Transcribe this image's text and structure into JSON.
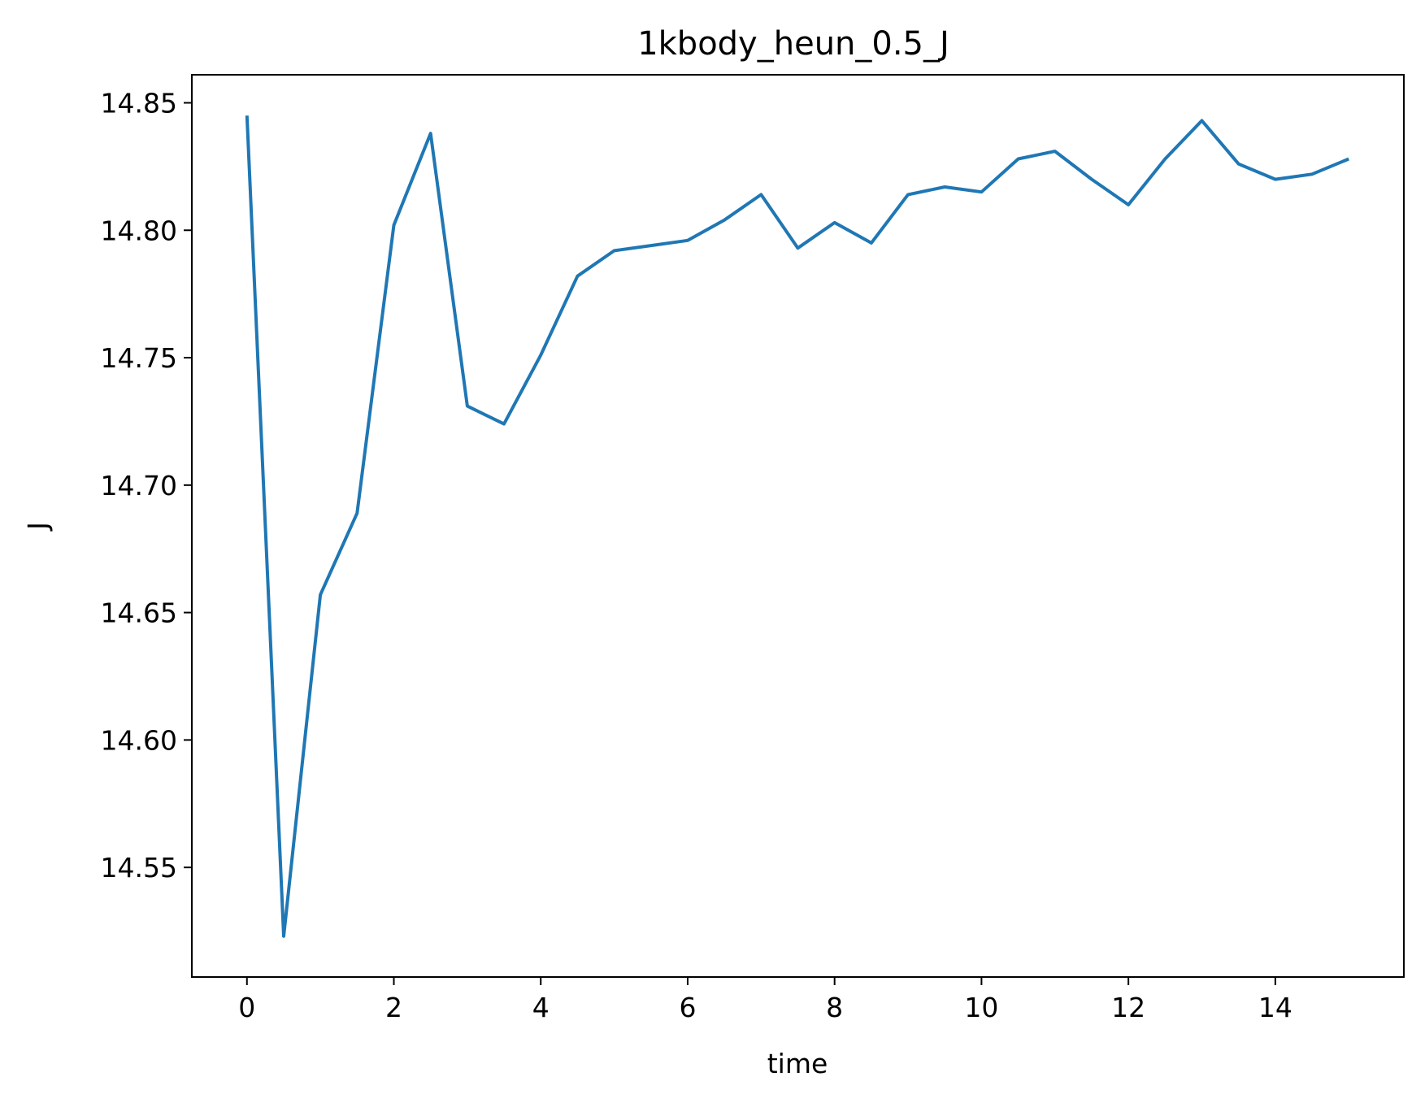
{
  "chart_data": {
    "type": "line",
    "title": "1kbody_heun_0.5_J",
    "xlabel": "time",
    "ylabel": "J",
    "xlim": [
      -0.75,
      15.75
    ],
    "ylim": [
      14.507,
      14.861
    ],
    "xticks": [
      0,
      2,
      4,
      6,
      8,
      10,
      12,
      14
    ],
    "xtick_labels": [
      "0",
      "2",
      "4",
      "6",
      "8",
      "10",
      "12",
      "14"
    ],
    "yticks": [
      14.55,
      14.6,
      14.65,
      14.7,
      14.75,
      14.8,
      14.85
    ],
    "ytick_labels": [
      "14.55",
      "14.60",
      "14.65",
      "14.70",
      "14.75",
      "14.80",
      "14.85"
    ],
    "grid": false,
    "series": [
      {
        "color": "#1f77b4",
        "x": [
          0,
          0.5,
          1,
          1.5,
          2,
          2.5,
          3,
          3.5,
          4,
          4.5,
          5,
          5.5,
          6,
          6.5,
          7,
          7.5,
          8,
          8.5,
          9,
          9.5,
          10,
          10.5,
          11,
          11.5,
          12,
          12.5,
          13,
          13.5,
          14,
          14.5,
          15
        ],
        "y": [
          14.845,
          14.523,
          14.657,
          14.689,
          14.802,
          14.838,
          14.731,
          14.724,
          14.751,
          14.782,
          14.792,
          14.794,
          14.796,
          14.804,
          14.814,
          14.793,
          14.803,
          14.795,
          14.814,
          14.817,
          14.815,
          14.828,
          14.831,
          14.82,
          14.81,
          14.828,
          14.843,
          14.826,
          14.82,
          14.822,
          14.828
        ]
      }
    ]
  }
}
